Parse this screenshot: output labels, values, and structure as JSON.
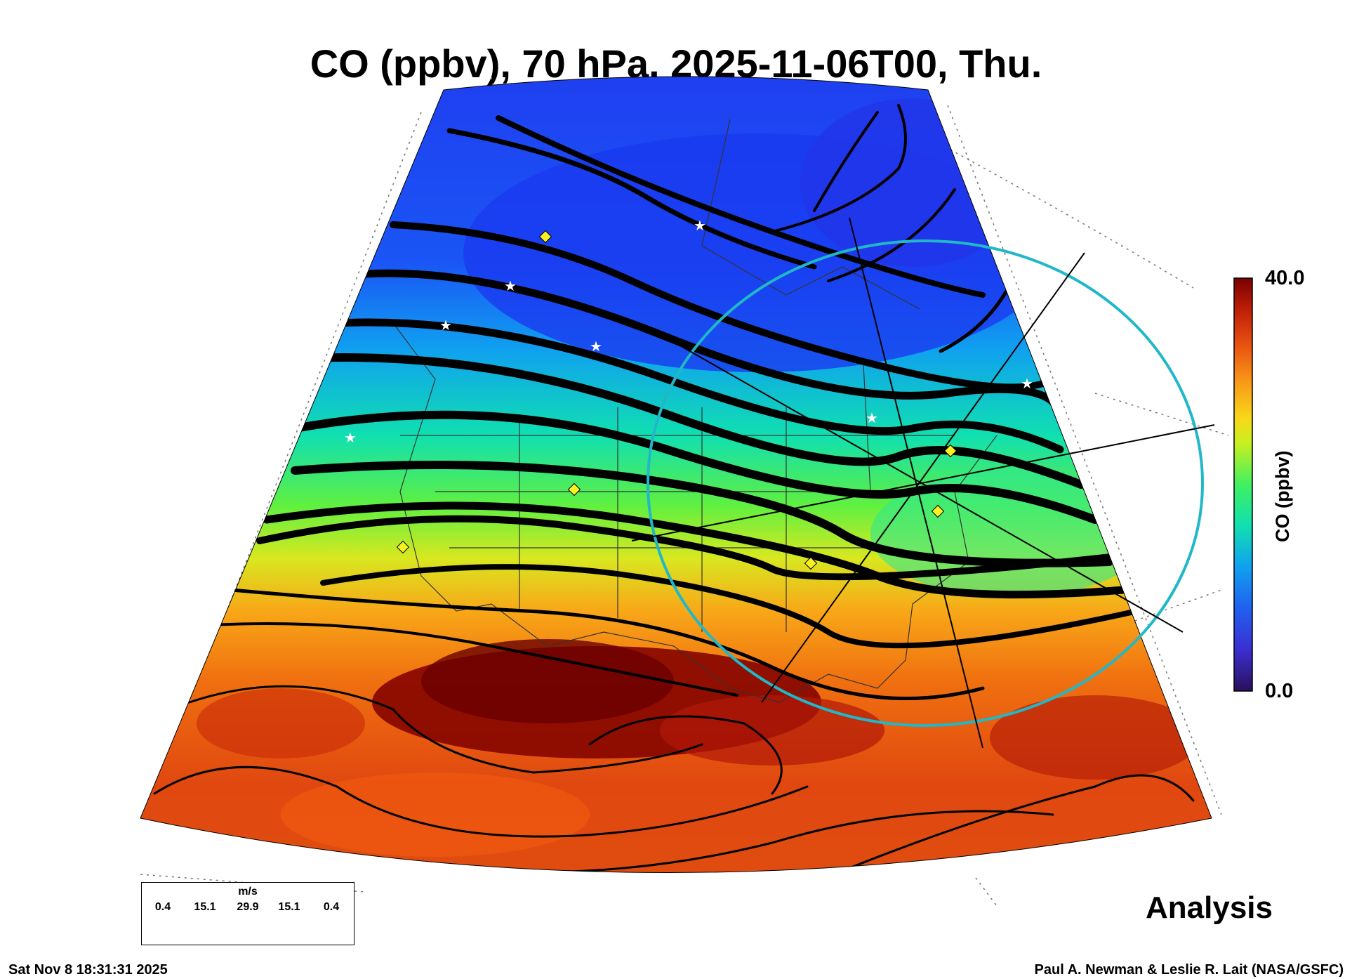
{
  "title": "CO (ppbv), 70 hPa, 2025-11-06T00, Thu.",
  "colorbar": {
    "label": "CO (ppbv)",
    "max_label": "40.0",
    "min_label": "0.0",
    "colors": [
      "#2a0f5c",
      "#3a2fd0",
      "#2060f0",
      "#10a0f0",
      "#10e0b0",
      "#40f060",
      "#c8f020",
      "#f8d818",
      "#f89818",
      "#e85010",
      "#c02008",
      "#7a0000"
    ]
  },
  "map_label": "Analysis",
  "wind_legend": {
    "unit": "m/s",
    "values": [
      "0.4",
      "15.1",
      "29.9",
      "15.1",
      "0.4"
    ]
  },
  "footer": {
    "left": "Sat Nov  8 18:31:31 2025",
    "right": "Paul A. Newman & Leslie R. Lait (NASA/GSFC)"
  }
}
